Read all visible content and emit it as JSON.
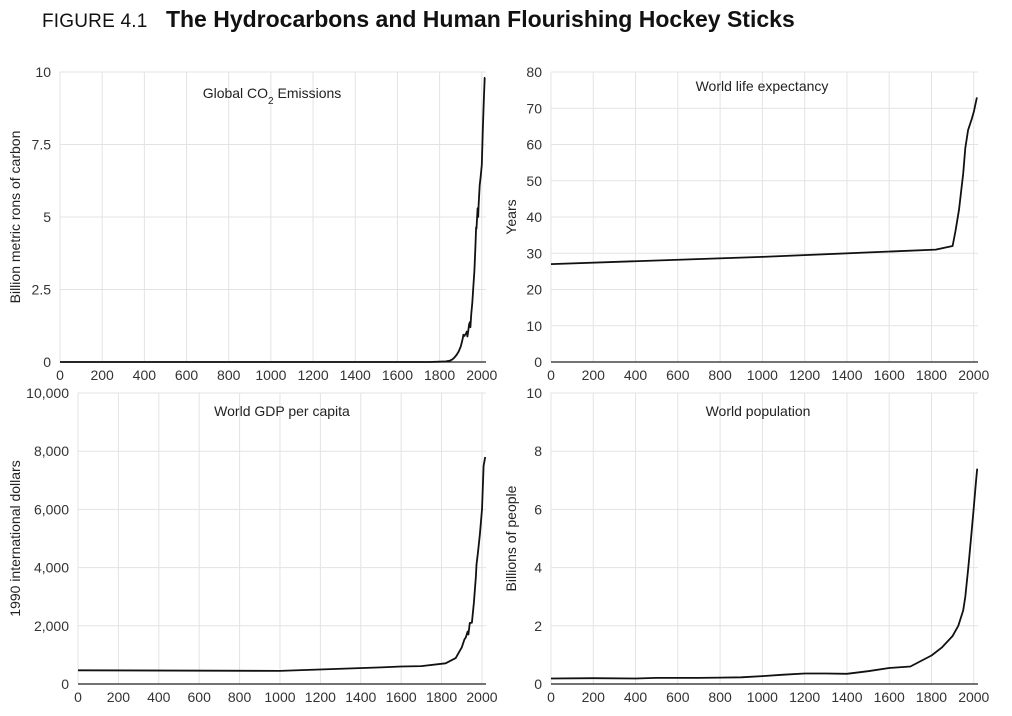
{
  "figure": {
    "label": "FIGURE 4.1",
    "title": "The Hydrocarbons and Human Flourishing Hockey Sticks"
  },
  "chart_data": [
    {
      "type": "line",
      "title": "Global CO2 Emissions",
      "title_base": "Global CO",
      "title_sub": "2",
      "title_tail": " Emissions",
      "ylabel": "Billion metric rons of carbon",
      "xlabel": "",
      "xlim": [
        0,
        2020
      ],
      "ylim": [
        0,
        10
      ],
      "xticks": [
        0,
        200,
        400,
        600,
        800,
        1000,
        1200,
        1400,
        1600,
        1800,
        2000
      ],
      "xtick_labels": [
        "0",
        "200",
        "400",
        "600",
        "800",
        "1000",
        "1200",
        "1400",
        "1600",
        "1800",
        "2000"
      ],
      "yticks": [
        0,
        2.5,
        5,
        7.5,
        10
      ],
      "ytick_labels": [
        "0",
        "2.5",
        "5",
        "7.5",
        "10"
      ],
      "grid": true,
      "series": [
        {
          "x": [
            0,
            1750,
            1800,
            1830,
            1850,
            1860,
            1870,
            1880,
            1890,
            1900,
            1905,
            1910,
            1913,
            1918,
            1920,
            1925,
            1929,
            1932,
            1935,
            1940,
            1944,
            1946,
            1950,
            1955,
            1960,
            1965,
            1970,
            1973,
            1975,
            1980,
            1983,
            1985,
            1990,
            1995,
            2000,
            2005,
            2008,
            2010,
            2014,
            2016
          ],
          "y": [
            0,
            0,
            0.01,
            0.02,
            0.05,
            0.09,
            0.15,
            0.24,
            0.36,
            0.53,
            0.66,
            0.82,
            0.94,
            0.9,
            0.93,
            0.98,
            1.05,
            0.88,
            1.03,
            1.3,
            1.38,
            1.2,
            1.63,
            2.04,
            2.58,
            3.14,
            4.05,
            4.64,
            4.6,
            5.3,
            5.0,
            5.4,
            6.1,
            6.4,
            6.8,
            8.0,
            8.7,
            9.1,
            9.8,
            9.8
          ]
        }
      ]
    },
    {
      "type": "line",
      "title": "World life expectancy",
      "ylabel": "Years",
      "xlabel": "",
      "xlim": [
        0,
        2020
      ],
      "ylim": [
        0,
        80
      ],
      "xticks": [
        0,
        200,
        400,
        600,
        800,
        1000,
        1200,
        1400,
        1600,
        1800,
        2000
      ],
      "xtick_labels": [
        "0",
        "200",
        "400",
        "600",
        "800",
        "1000",
        "1200",
        "1400",
        "1600",
        "1800",
        "2000"
      ],
      "yticks": [
        0,
        10,
        20,
        30,
        40,
        50,
        60,
        70,
        80
      ],
      "ytick_labels": [
        "0",
        "10",
        "20",
        "30",
        "40",
        "50",
        "60",
        "70",
        "80"
      ],
      "grid": true,
      "series": [
        {
          "x": [
            0,
            1000,
            1820,
            1900,
            1913,
            1930,
            1950,
            1960,
            1973,
            1990,
            2000,
            2015
          ],
          "y": [
            27,
            29,
            31,
            32,
            36,
            42,
            52,
            59,
            64,
            67,
            69,
            73
          ]
        }
      ]
    },
    {
      "type": "line",
      "title": "World GDP per capita",
      "ylabel": "1990 international dollars",
      "xlabel": "",
      "xlim": [
        0,
        2020
      ],
      "ylim": [
        0,
        10000
      ],
      "xticks": [
        0,
        200,
        400,
        600,
        800,
        1000,
        1200,
        1400,
        1600,
        1800,
        2000
      ],
      "xtick_labels": [
        "0",
        "200",
        "400",
        "600",
        "800",
        "1000",
        "1200",
        "1400",
        "1600",
        "1800",
        "2000"
      ],
      "yticks": [
        0,
        2000,
        4000,
        6000,
        8000,
        10000
      ],
      "ytick_labels": [
        "0",
        "2,000",
        "4,000",
        "6,000",
        "8,000",
        "10,000"
      ],
      "grid": true,
      "series": [
        {
          "x": [
            0,
            1000,
            1500,
            1600,
            1700,
            1820,
            1870,
            1900,
            1913,
            1920,
            1929,
            1933,
            1940,
            1945,
            1950,
            1960,
            1970,
            1973,
            1980,
            1990,
            2000,
            2008,
            2016
          ],
          "y": [
            470,
            450,
            570,
            600,
            615,
            710,
            890,
            1260,
            1530,
            1600,
            1800,
            1700,
            2100,
            2100,
            2110,
            2800,
            3700,
            4100,
            4500,
            5150,
            6000,
            7500,
            7800
          ]
        }
      ]
    },
    {
      "type": "line",
      "title": "World population",
      "ylabel": "Billions of people",
      "xlabel": "",
      "xlim": [
        0,
        2020
      ],
      "ylim": [
        0,
        10
      ],
      "xticks": [
        0,
        200,
        400,
        600,
        800,
        1000,
        1200,
        1400,
        1600,
        1800,
        2000
      ],
      "xtick_labels": [
        "0",
        "200",
        "400",
        "600",
        "800",
        "1000",
        "1200",
        "1400",
        "1600",
        "1800",
        "2000"
      ],
      "yticks": [
        0,
        2,
        4,
        6,
        8,
        10
      ],
      "ytick_labels": [
        "0",
        "2",
        "4",
        "6",
        "8",
        "10"
      ],
      "grid": true,
      "series": [
        {
          "x": [
            0,
            200,
            400,
            500,
            600,
            700,
            800,
            900,
            1000,
            1100,
            1200,
            1300,
            1400,
            1500,
            1600,
            1700,
            1750,
            1800,
            1850,
            1900,
            1927,
            1950,
            1960,
            1974,
            1987,
            1999,
            2011,
            2016
          ],
          "y": [
            0.19,
            0.2,
            0.19,
            0.21,
            0.21,
            0.21,
            0.22,
            0.23,
            0.27,
            0.32,
            0.36,
            0.36,
            0.35,
            0.44,
            0.55,
            0.6,
            0.79,
            0.98,
            1.26,
            1.65,
            2.0,
            2.53,
            3.0,
            4.0,
            5.0,
            6.0,
            7.0,
            7.4
          ]
        }
      ]
    }
  ]
}
